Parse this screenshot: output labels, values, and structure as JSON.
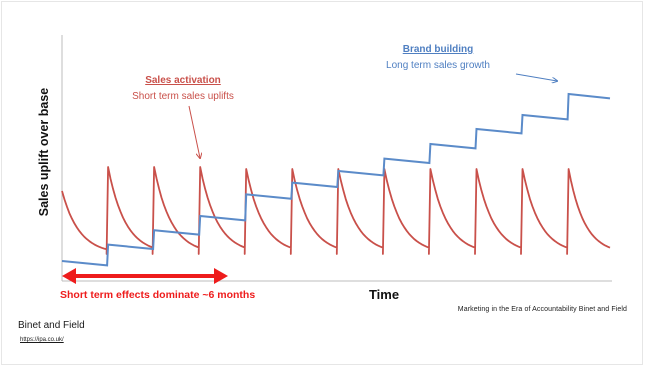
{
  "chart_data": {
    "type": "line",
    "xlabel": "Time",
    "ylabel": "Sales uplift over base",
    "series": [
      {
        "name": "Brand building",
        "description": "Long term sales growth",
        "color": "#5b8bc9",
        "steps": [
          0,
          8.2,
          15.4,
          22.5,
          33.3,
          39.2,
          45.0,
          51.2,
          58.5,
          66.0,
          73.0,
          83.5
        ],
        "segment_decay": 2.2
      },
      {
        "name": "Sales activation",
        "description": "Short term sales uplifts",
        "color": "#c9504a",
        "peaks": [
          35,
          47,
          47,
          47,
          46,
          46,
          46,
          46,
          46,
          46,
          46,
          46
        ],
        "trough": 3.5,
        "pulse_count": 12
      }
    ],
    "annotation_arrow": {
      "label": "Short term effects dominate ~6 months",
      "color": "#ee1c1c"
    }
  },
  "caption_line": "Marketing in the Era of Accountability Binet and Field",
  "figure_caption": "Binet and Field",
  "source_link": "https://ipa.co.uk/"
}
